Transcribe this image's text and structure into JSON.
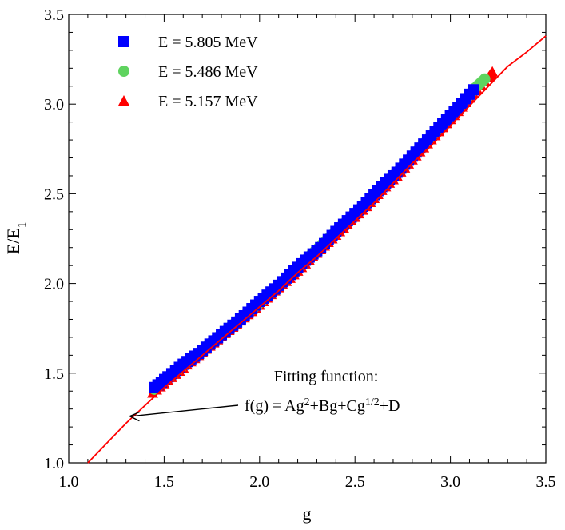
{
  "chart_data": {
    "type": "scatter",
    "title": "",
    "xlabel": "g",
    "ylabel_main": "E/E",
    "ylabel_sub": "1",
    "xlim": [
      1.0,
      3.5
    ],
    "ylim": [
      1.0,
      3.5
    ],
    "x_ticks": [
      1.0,
      1.5,
      2.0,
      2.5,
      3.0,
      3.5
    ],
    "x_tick_labels": [
      "1.0",
      "1.5",
      "2.0",
      "2.5",
      "3.0",
      "3.5"
    ],
    "y_ticks": [
      1.0,
      1.5,
      2.0,
      2.5,
      3.0,
      3.5
    ],
    "y_tick_labels": [
      "1.0",
      "1.5",
      "2.0",
      "2.5",
      "3.0",
      "3.5"
    ],
    "grid": false,
    "legend_position": "top-left",
    "series": [
      {
        "name": "E = 5.805 MeV",
        "marker": "square",
        "color": "#0000ff",
        "x": [
          1.45,
          1.52,
          1.6,
          1.68,
          1.76,
          1.84,
          1.92,
          2.0,
          2.08,
          2.16,
          2.24,
          2.32,
          2.4,
          2.48,
          2.56,
          2.64,
          2.72,
          2.8,
          2.88,
          2.96,
          3.04,
          3.12
        ],
        "y": [
          1.42,
          1.48,
          1.55,
          1.61,
          1.68,
          1.75,
          1.82,
          1.9,
          1.97,
          2.05,
          2.13,
          2.2,
          2.29,
          2.37,
          2.45,
          2.54,
          2.62,
          2.71,
          2.8,
          2.89,
          2.98,
          3.08
        ]
      },
      {
        "name": "E = 5.486 MeV",
        "marker": "circle",
        "color": "#5fd35f",
        "x": [
          1.45,
          1.53,
          1.61,
          1.69,
          1.77,
          1.85,
          1.93,
          2.01,
          2.09,
          2.17,
          2.25,
          2.33,
          2.41,
          2.49,
          2.57,
          2.65,
          2.73,
          2.81,
          2.89,
          2.97,
          3.05,
          3.13,
          3.18
        ],
        "y": [
          1.41,
          1.48,
          1.55,
          1.62,
          1.69,
          1.76,
          1.83,
          1.9,
          1.98,
          2.06,
          2.14,
          2.22,
          2.3,
          2.38,
          2.46,
          2.55,
          2.63,
          2.72,
          2.81,
          2.9,
          2.99,
          3.09,
          3.14
        ]
      },
      {
        "name": "E = 5.157 MeV",
        "marker": "triangle",
        "color": "#ff0000",
        "x": [
          1.44,
          1.52,
          1.6,
          1.68,
          1.76,
          1.84,
          1.92,
          2.0,
          2.08,
          2.16,
          2.24,
          2.32,
          2.4,
          2.48,
          2.56,
          2.64,
          2.72,
          2.8,
          2.88,
          2.96,
          3.04,
          3.12,
          3.2,
          3.22
        ],
        "y": [
          1.39,
          1.46,
          1.53,
          1.6,
          1.67,
          1.74,
          1.81,
          1.88,
          1.96,
          2.03,
          2.11,
          2.19,
          2.27,
          2.35,
          2.43,
          2.52,
          2.6,
          2.69,
          2.78,
          2.87,
          2.96,
          3.06,
          3.15,
          3.18
        ]
      }
    ],
    "fit_curve": {
      "name": "fit",
      "color": "#ff0000",
      "x": [
        1.1,
        1.2,
        1.3,
        1.4,
        1.5,
        1.6,
        1.7,
        1.8,
        1.9,
        2.0,
        2.1,
        2.2,
        2.3,
        2.4,
        2.5,
        2.6,
        2.7,
        2.8,
        2.9,
        3.0,
        3.1,
        3.2,
        3.3,
        3.4,
        3.5
      ],
      "y": [
        1.0,
        1.11,
        1.22,
        1.32,
        1.42,
        1.51,
        1.6,
        1.69,
        1.78,
        1.87,
        1.96,
        2.06,
        2.15,
        2.25,
        2.35,
        2.45,
        2.56,
        2.67,
        2.77,
        2.88,
        2.99,
        3.1,
        3.21,
        3.29,
        3.38
      ]
    },
    "annotation": {
      "title": "Fitting function:",
      "formula_parts": [
        {
          "text": "f(g) = Ag",
          "sup": false
        },
        {
          "text": "2",
          "sup": true
        },
        {
          "text": "+Bg+Cg",
          "sup": false
        },
        {
          "text": "1/2",
          "sup": true
        },
        {
          "text": "+D",
          "sup": false
        }
      ],
      "arrow_to": [
        1.32,
        1.26
      ]
    }
  }
}
